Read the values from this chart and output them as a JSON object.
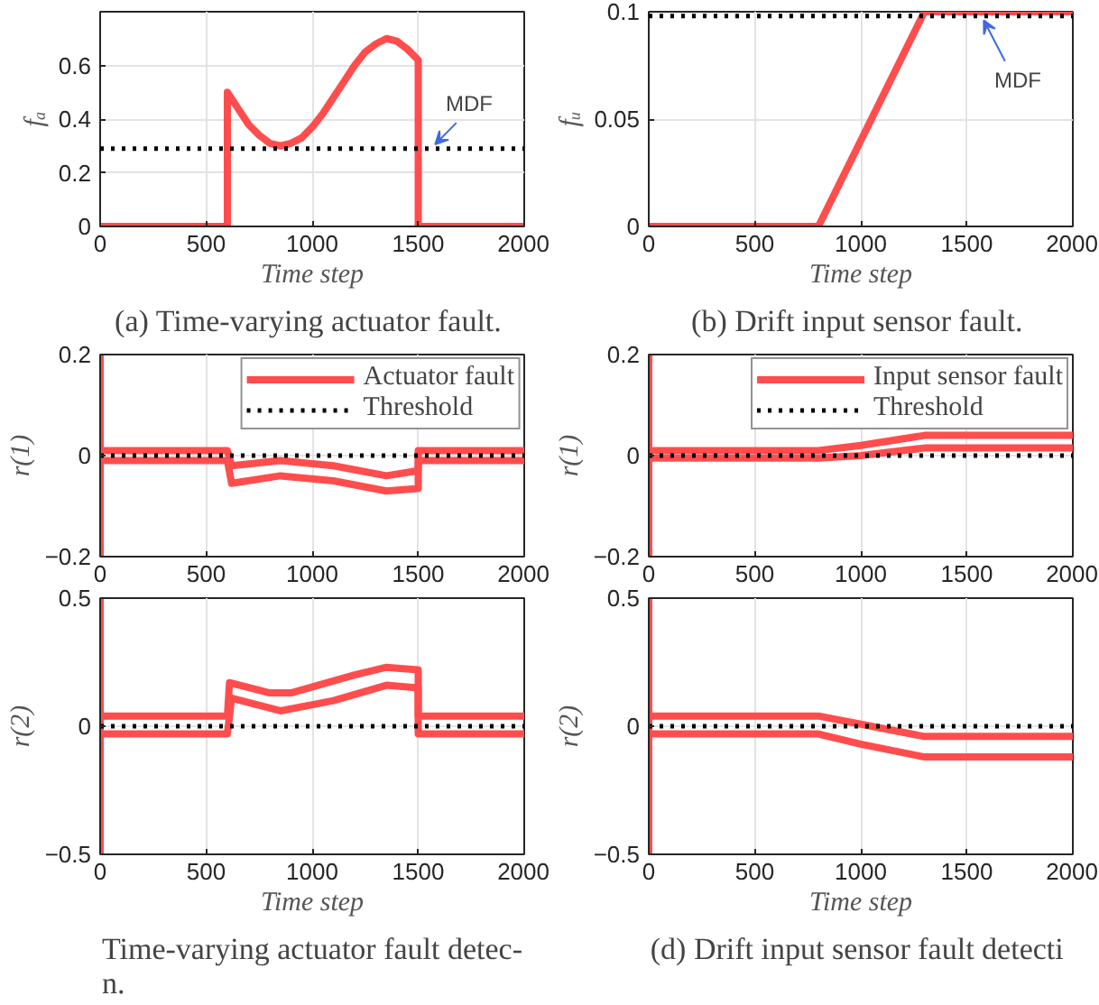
{
  "chart_data": [
    {
      "type": "line",
      "xlabel": "Time step",
      "ylabel": "fₐ",
      "xlim": [
        0,
        2000
      ],
      "ylim": [
        0,
        0.8
      ],
      "xticks": [
        0,
        500,
        1000,
        1500,
        2000
      ],
      "yticks": [
        0,
        0.2,
        0.4,
        0.6
      ],
      "grid": true,
      "series": [
        {
          "color": "#ff4d4d",
          "x": [
            0,
            600,
            600,
            650,
            700,
            750,
            800,
            850,
            900,
            950,
            1000,
            1050,
            1100,
            1150,
            1200,
            1250,
            1300,
            1350,
            1400,
            1450,
            1500,
            1500,
            2000
          ],
          "values": [
            0,
            0,
            0.5,
            0.44,
            0.38,
            0.34,
            0.31,
            0.3,
            0.31,
            0.33,
            0.37,
            0.42,
            0.48,
            0.54,
            0.6,
            0.65,
            0.68,
            0.7,
            0.69,
            0.66,
            0.62,
            0,
            0
          ]
        }
      ],
      "ref_lines": [
        {
          "axis": "y",
          "value": 0.29,
          "label": "MDF",
          "color": "#000000",
          "line_style": "dotted"
        }
      ],
      "annotations": [
        "(a)  Time-varying actuator fault."
      ]
    },
    {
      "type": "line",
      "xlabel": "Time step",
      "ylabel": "fᵤ",
      "xlim": [
        0,
        2000
      ],
      "ylim": [
        0,
        0.1
      ],
      "xticks": [
        0,
        500,
        1000,
        1500,
        2000
      ],
      "yticks": [
        0,
        0.05,
        0.1
      ],
      "grid": true,
      "series": [
        {
          "color": "#ff4d4d",
          "x": [
            0,
            800,
            1300,
            2000
          ],
          "values": [
            0,
            0,
            0.1,
            0.1
          ]
        }
      ],
      "ref_lines": [
        {
          "axis": "y",
          "value": 0.098,
          "label": "MDF",
          "color": "#000000",
          "line_style": "dotted"
        }
      ],
      "annotations": [
        "(b)  Drift input sensor fault."
      ]
    },
    {
      "type": "line",
      "ylabel": "r(1)",
      "xlim": [
        0,
        2000
      ],
      "ylim": [
        -0.2,
        0.2
      ],
      "xticks": [
        0,
        500,
        1000,
        1500,
        2000
      ],
      "yticks": [
        -0.2,
        0,
        0.2
      ],
      "grid": true,
      "legend": "top right",
      "series": [
        {
          "name": "Actuator fault",
          "color": "#ff4d4d",
          "x": [
            0,
            0,
            0,
            600,
            620,
            850,
            1100,
            1350,
            1500,
            1500,
            2000
          ],
          "values": [
            -0.2,
            0.2,
            0.01,
            0.01,
            -0.02,
            -0.01,
            -0.02,
            -0.04,
            -0.03,
            0.01,
            0.01
          ]
        },
        {
          "color": "#ff4d4d",
          "x": [
            0,
            600,
            620,
            850,
            1100,
            1350,
            1500,
            1500,
            2000
          ],
          "values": [
            -0.01,
            -0.01,
            -0.055,
            -0.04,
            -0.05,
            -0.07,
            -0.065,
            -0.01,
            -0.01
          ]
        },
        {
          "name": "Threshold",
          "color": "#000000",
          "line_style": "dotted",
          "x": [
            0,
            2000
          ],
          "values": [
            0,
            0
          ]
        }
      ]
    },
    {
      "type": "line",
      "ylabel": "r(1)",
      "xlim": [
        0,
        2000
      ],
      "ylim": [
        -0.2,
        0.2
      ],
      "xticks": [
        0,
        500,
        1000,
        1500,
        2000
      ],
      "yticks": [
        -0.2,
        0,
        0.2
      ],
      "grid": true,
      "legend": "top right",
      "series": [
        {
          "name": "Input sensor fault",
          "color": "#ff4d4d",
          "x": [
            0,
            0,
            0,
            800,
            1000,
            1300,
            2000
          ],
          "values": [
            -0.2,
            0.2,
            0.01,
            0.01,
            0.02,
            0.04,
            0.04
          ]
        },
        {
          "color": "#ff4d4d",
          "x": [
            0,
            800,
            1000,
            1300,
            2000
          ],
          "values": [
            -0.005,
            -0.005,
            0,
            0.015,
            0.015
          ]
        },
        {
          "name": "Threshold",
          "color": "#000000",
          "line_style": "dotted",
          "x": [
            0,
            2000
          ],
          "values": [
            0,
            0
          ]
        }
      ]
    },
    {
      "type": "line",
      "xlabel": "Time step",
      "ylabel": "r(2)",
      "xlim": [
        0,
        2000
      ],
      "ylim": [
        -0.5,
        0.5
      ],
      "xticks": [
        0,
        500,
        1000,
        1500,
        2000
      ],
      "yticks": [
        -0.5,
        0,
        0.5
      ],
      "grid": true,
      "series": [
        {
          "color": "#ff4d4d",
          "x": [
            0,
            0,
            0,
            600,
            610,
            800,
            900,
            1200,
            1350,
            1500,
            1500,
            2000
          ],
          "values": [
            -0.5,
            0.5,
            0.04,
            0.04,
            0.17,
            0.13,
            0.13,
            0.2,
            0.23,
            0.22,
            0.04,
            0.04
          ]
        },
        {
          "color": "#ff4d4d",
          "x": [
            0,
            600,
            620,
            850,
            1100,
            1350,
            1500,
            1500,
            2000
          ],
          "values": [
            -0.03,
            -0.03,
            0.11,
            0.06,
            0.1,
            0.16,
            0.15,
            -0.03,
            -0.03
          ]
        },
        {
          "color": "#000000",
          "line_style": "dotted",
          "x": [
            0,
            2000
          ],
          "values": [
            0,
            0
          ]
        }
      ],
      "annotations": [
        "Time-varying actuator fault detec-\nn."
      ]
    },
    {
      "type": "line",
      "xlabel": "Time step",
      "ylabel": "r(2)",
      "xlim": [
        0,
        2000
      ],
      "ylim": [
        -0.5,
        0.5
      ],
      "xticks": [
        0,
        500,
        1000,
        1500,
        2000
      ],
      "yticks": [
        -0.5,
        0,
        0.5
      ],
      "grid": true,
      "series": [
        {
          "color": "#ff4d4d",
          "x": [
            0,
            0,
            0,
            800,
            1050,
            1300,
            2000
          ],
          "values": [
            -0.5,
            0.5,
            0.04,
            0.04,
            0,
            -0.04,
            -0.04
          ]
        },
        {
          "color": "#ff4d4d",
          "x": [
            0,
            800,
            1000,
            1300,
            2000
          ],
          "values": [
            -0.03,
            -0.03,
            -0.07,
            -0.12,
            -0.12
          ]
        },
        {
          "color": "#000000",
          "line_style": "dotted",
          "x": [
            0,
            2000
          ],
          "values": [
            0,
            0
          ]
        }
      ],
      "annotations": [
        "(d)  Drift input sensor fault detecti"
      ]
    }
  ]
}
